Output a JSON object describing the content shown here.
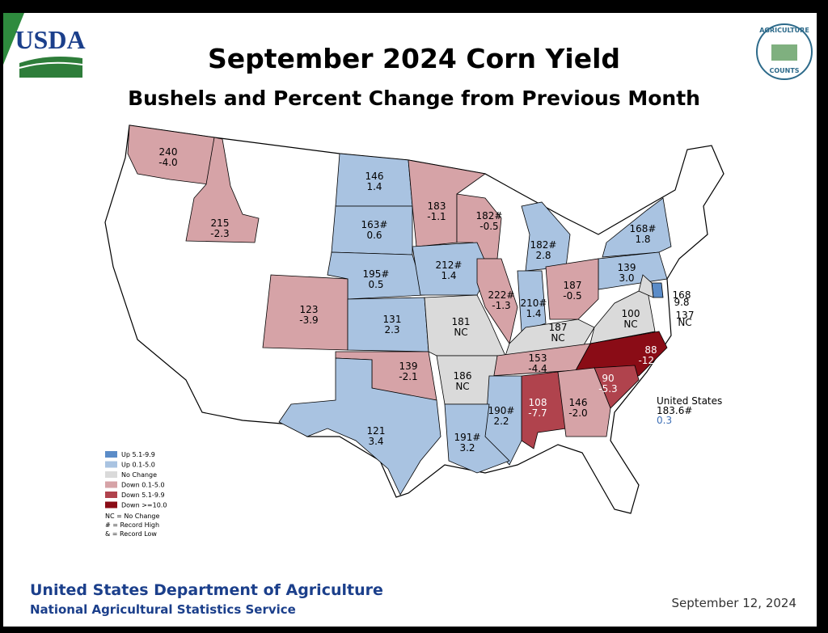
{
  "header": {
    "logo_text": "USDA",
    "badge_top": "AGRICULTURE",
    "badge_bottom": "COUNTS",
    "title": "September 2024 Corn Yield",
    "subtitle": "Bushels and Percent Change from Previous Month"
  },
  "states": [
    {
      "yield": "240",
      "change": "-4.0",
      "color": "#d6a3a7"
    },
    {
      "yield": "215",
      "change": "-2.3",
      "color": "#d6a3a7"
    },
    {
      "yield": "146",
      "change": "1.4",
      "color": "#a9c3e1"
    },
    {
      "yield": "163#",
      "change": "0.6",
      "color": "#a9c3e1"
    },
    {
      "yield": "183",
      "change": "-1.1",
      "color": "#d6a3a7"
    },
    {
      "yield": "182#",
      "change": "-0.5",
      "color": "#d6a3a7"
    },
    {
      "yield": "168#",
      "change": "1.8",
      "color": "#a9c3e1"
    },
    {
      "yield": "182#",
      "change": "2.8",
      "color": "#a9c3e1"
    },
    {
      "yield": "139",
      "change": "3.0",
      "color": "#a9c3e1"
    },
    {
      "yield": "195#",
      "change": "0.5",
      "color": "#a9c3e1"
    },
    {
      "yield": "212#",
      "change": "1.4",
      "color": "#a9c3e1"
    },
    {
      "yield": "123",
      "change": "-3.9",
      "color": "#d6a3a7"
    },
    {
      "yield": "131",
      "change": "2.3",
      "color": "#a9c3e1"
    },
    {
      "yield": "181",
      "change": "NC",
      "color": "#dadada"
    },
    {
      "yield": "222#",
      "change": "-1.3",
      "color": "#d6a3a7"
    },
    {
      "yield": "210#",
      "change": "1.4",
      "color": "#a9c3e1"
    },
    {
      "yield": "187",
      "change": "-0.5",
      "color": "#d6a3a7"
    },
    {
      "yield": "187",
      "change": "NC",
      "color": "#dadada"
    },
    {
      "yield": "100",
      "change": "NC",
      "color": "#dadada"
    },
    {
      "yield": "168",
      "change": "9.8",
      "color": "#5b8cc8"
    },
    {
      "yield": "137",
      "change": "NC",
      "color": "#dadada"
    },
    {
      "yield": "88",
      "change": "-12.0",
      "color": "#8a0c16"
    },
    {
      "yield": "153",
      "change": "-4.4",
      "color": "#d6a3a7"
    },
    {
      "yield": "139",
      "change": "-2.1",
      "color": "#d6a3a7"
    },
    {
      "yield": "186",
      "change": "NC",
      "color": "#dadada"
    },
    {
      "yield": "90",
      "change": "-5.3",
      "color": "#b0434d"
    },
    {
      "yield": "108",
      "change": "-7.7",
      "color": "#b0434d"
    },
    {
      "yield": "146",
      "change": "-2.0",
      "color": "#d6a3a7"
    },
    {
      "yield": "190#",
      "change": "2.2",
      "color": "#a9c3e1"
    },
    {
      "yield": "191#",
      "change": "3.2",
      "color": "#a9c3e1"
    },
    {
      "yield": "121",
      "change": "3.4",
      "color": "#a9c3e1"
    }
  ],
  "legend": {
    "items": [
      {
        "label": "Up 5.1-9.9",
        "color": "#5b8cc8"
      },
      {
        "label": "Up 0.1-5.0",
        "color": "#a9c3e1"
      },
      {
        "label": "No Change",
        "color": "#dadada"
      },
      {
        "label": "Down 0.1-5.0",
        "color": "#d6a3a7"
      },
      {
        "label": "Down 5.1-9.9",
        "color": "#b0434d"
      },
      {
        "label": "Down >=10.0",
        "color": "#8a0c16"
      }
    ],
    "notes": [
      "NC = No Change",
      "# = Record High",
      "& = Record Low"
    ]
  },
  "national": {
    "label": "United States",
    "yield": "183.6#",
    "change": "0.3"
  },
  "footer": {
    "agency": "United States Department of Agriculture",
    "service": "National Agricultural Statistics Service",
    "date": "September 12, 2024"
  }
}
